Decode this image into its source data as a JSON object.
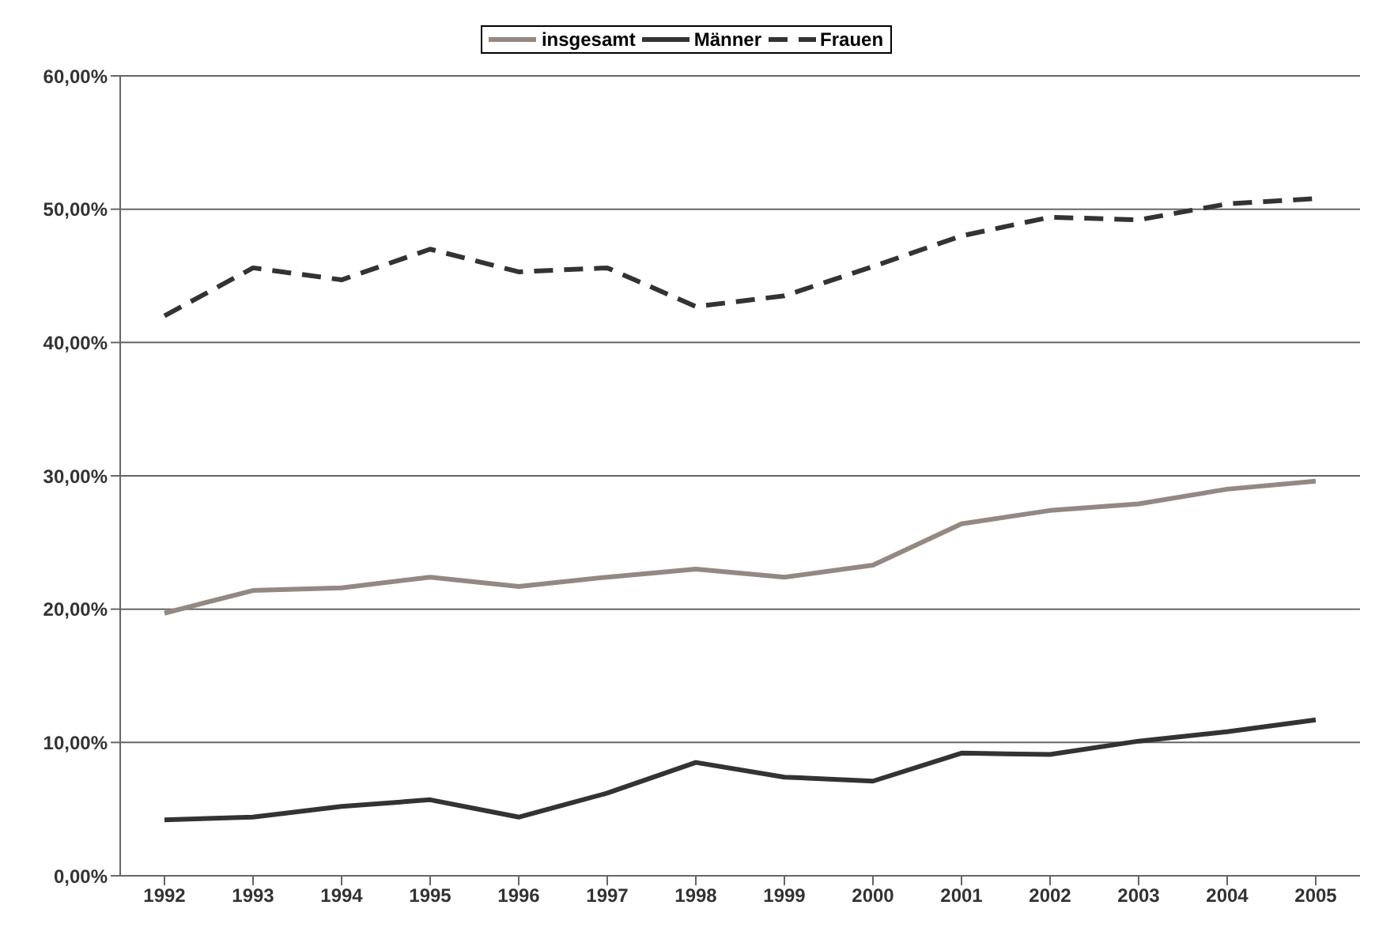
{
  "chart_data": {
    "type": "line",
    "categories": [
      "1992",
      "1993",
      "1994",
      "1995",
      "1996",
      "1997",
      "1998",
      "1999",
      "2000",
      "2001",
      "2002",
      "2003",
      "2004",
      "2005"
    ],
    "series": [
      {
        "name": "insgesamt",
        "color": "#948883",
        "line_style": "solid",
        "values": [
          19.7,
          21.4,
          21.6,
          22.4,
          21.7,
          22.4,
          23.0,
          22.4,
          23.3,
          26.4,
          27.4,
          27.9,
          29.0,
          29.6
        ]
      },
      {
        "name": "Männer",
        "color": "#333333",
        "line_style": "solid",
        "values": [
          4.2,
          4.4,
          5.2,
          5.7,
          4.4,
          6.2,
          8.5,
          7.4,
          7.1,
          9.2,
          9.1,
          10.1,
          10.8,
          11.7
        ]
      },
      {
        "name": "Frauen",
        "color": "#333333",
        "line_style": "dashed",
        "values": [
          42.0,
          45.6,
          44.7,
          47.0,
          45.3,
          45.6,
          42.7,
          43.5,
          45.7,
          48.0,
          49.4,
          49.2,
          50.4,
          50.8
        ]
      }
    ],
    "ylim": [
      0,
      60
    ],
    "yticks": [
      {
        "value": 0,
        "label": "0,00%"
      },
      {
        "value": 10,
        "label": "10,00%"
      },
      {
        "value": 20,
        "label": "20,00%"
      },
      {
        "value": 30,
        "label": "30,00%"
      },
      {
        "value": 40,
        "label": "40,00%"
      },
      {
        "value": 50,
        "label": "50,00%"
      },
      {
        "value": 60,
        "label": "60,00%"
      }
    ],
    "grid": "y",
    "legend": "top",
    "marker": "none"
  }
}
